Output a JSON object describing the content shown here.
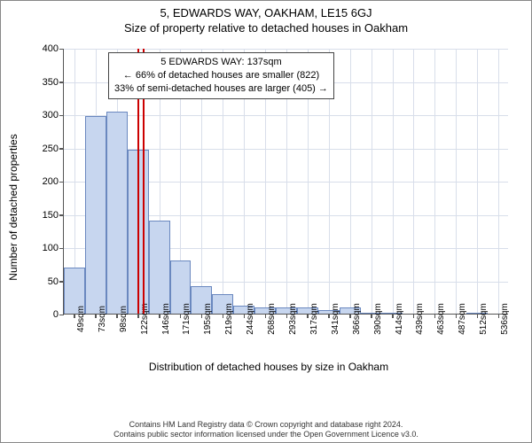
{
  "header": {
    "address": "5, EDWARDS WAY, OAKHAM, LE15 6GJ",
    "subtitle": "Size of property relative to detached houses in Oakham"
  },
  "chart": {
    "type": "histogram",
    "ylabel": "Number of detached properties",
    "xlabel": "Distribution of detached houses by size in Oakham",
    "ylim": [
      0,
      400
    ],
    "ytick_step": 50,
    "xlim_categories": 21,
    "bar_fill": "#c7d6ef",
    "bar_stroke": "#6a88bf",
    "grid_color": "#d8deea",
    "background_color": "#ffffff",
    "axis_color": "#555555",
    "reference_line_color": "#cc0000",
    "bar_width_ratio": 1.0,
    "categories": [
      "49sqm",
      "73sqm",
      "98sqm",
      "122sqm",
      "146sqm",
      "171sqm",
      "195sqm",
      "219sqm",
      "244sqm",
      "268sqm",
      "293sqm",
      "317sqm",
      "341sqm",
      "366sqm",
      "390sqm",
      "414sqm",
      "439sqm",
      "463sqm",
      "487sqm",
      "512sqm",
      "536sqm"
    ],
    "values": [
      70,
      297,
      304,
      247,
      140,
      80,
      41,
      30,
      12,
      10,
      9,
      10,
      6,
      9,
      2,
      2,
      0,
      0,
      0,
      2,
      0
    ],
    "yticks": [
      "0",
      "50",
      "100",
      "150",
      "200",
      "250",
      "300",
      "350",
      "400"
    ],
    "reference_value": 137,
    "reference_index_between": [
      3,
      4
    ]
  },
  "callout": {
    "line1": "5 EDWARDS WAY: 137sqm",
    "line2": "← 66% of detached houses are smaller (822)",
    "line3": "33% of semi-detached houses are larger (405) →"
  },
  "footer": {
    "line1": "Contains HM Land Registry data © Crown copyright and database right 2024.",
    "line2": "Contains public sector information licensed under the Open Government Licence v3.0."
  }
}
